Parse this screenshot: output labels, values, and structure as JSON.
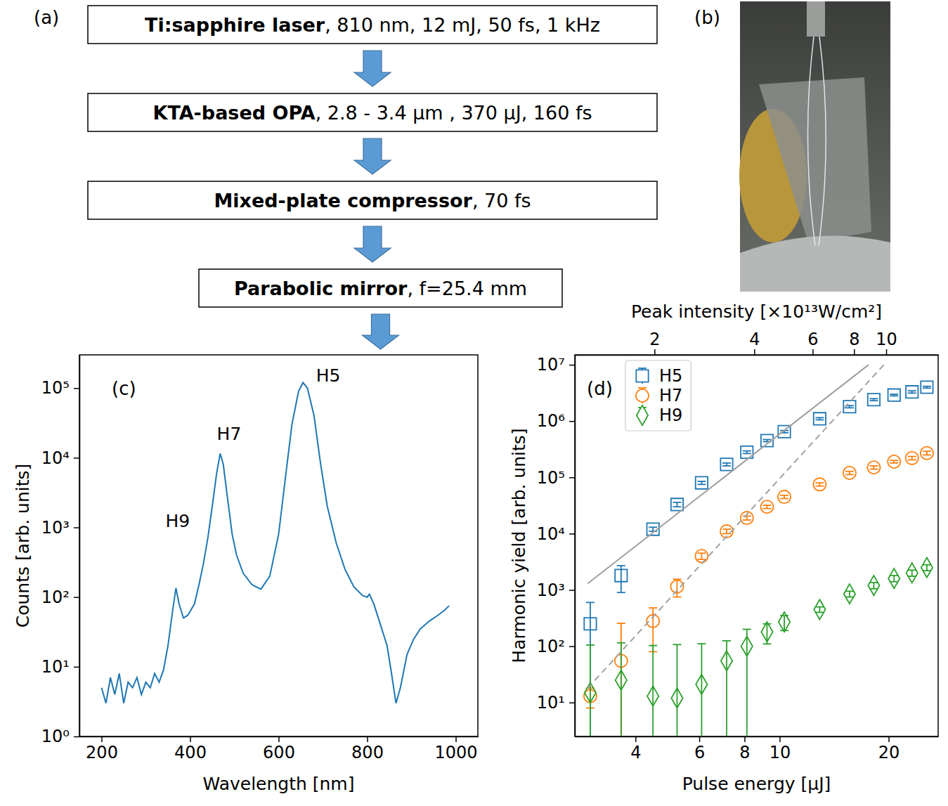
{
  "diagram": {
    "label": "(a)",
    "boxes": [
      {
        "bold": "Ti:sapphire laser",
        "text": ", 810 nm, 12 mJ, 50 fs, 1 kHz"
      },
      {
        "bold": "KTA-based OPA",
        "text": ", 2.8 - 3.4 μm , 370 μJ, 160 fs"
      },
      {
        "bold": "Mixed-plate compressor",
        "text": ", 70 fs"
      },
      {
        "bold": "Parabolic mirror",
        "text": ", f=25.4 mm"
      }
    ]
  },
  "photo": {
    "label": "(b)"
  },
  "chart_data": [
    {
      "type": "line",
      "title": "(c)",
      "x_label": "Wavelength [nm]",
      "y_label": "Counts [arb. units]",
      "log": "y",
      "grid": false,
      "xlim": [
        150,
        1050
      ],
      "xticks": [
        200,
        400,
        600,
        800,
        1000
      ],
      "ylim": [
        1,
        300000
      ],
      "yticks": [
        {
          "value": 1,
          "label": "10⁰"
        },
        {
          "value": 10,
          "label": "10¹"
        },
        {
          "value": 100,
          "label": "10²"
        },
        {
          "value": 1000,
          "label": "10³"
        },
        {
          "value": 10000,
          "label": "10⁴"
        },
        {
          "value": 100000,
          "label": "10⁵"
        }
      ],
      "x": [
        200,
        210,
        220,
        230,
        240,
        250,
        260,
        270,
        280,
        290,
        300,
        310,
        320,
        330,
        340,
        350,
        360,
        368,
        375,
        385,
        395,
        410,
        420,
        430,
        440,
        450,
        460,
        468,
        475,
        485,
        495,
        505,
        520,
        540,
        560,
        580,
        600,
        615,
        630,
        645,
        655,
        665,
        680,
        695,
        710,
        730,
        750,
        770,
        790,
        800,
        805,
        815,
        830,
        845,
        855,
        865,
        875,
        890,
        905,
        920,
        940,
        960,
        975,
        985
      ],
      "series": [
        {
          "color": "#1f77b4",
          "values": [
            5,
            3,
            7,
            4,
            8,
            3,
            6,
            5,
            7,
            4,
            6,
            5,
            8,
            6,
            9,
            20,
            60,
            135,
            80,
            50,
            55,
            80,
            150,
            300,
            700,
            2000,
            6000,
            11500,
            8000,
            2500,
            800,
            400,
            220,
            150,
            130,
            200,
            800,
            5000,
            30000,
            90000,
            120000,
            100000,
            40000,
            8000,
            2000,
            600,
            250,
            140,
            105,
            100,
            110,
            80,
            40,
            20,
            8,
            3,
            5,
            15,
            25,
            35,
            45,
            55,
            65,
            75
          ]
        }
      ],
      "annotations": [
        {
          "text": "H9",
          "x": 372,
          "y": 1230
        },
        {
          "text": "H7",
          "x": 488,
          "y": 22000
        },
        {
          "text": "H5",
          "x": 712,
          "y": 150000
        }
      ]
    },
    {
      "type": "scatter",
      "title": "(d)",
      "x_label": "Pulse energy [μJ]",
      "y_label": "Harmonic yield [arb. units]",
      "x2_label": "Peak intensity [×10¹³W/cm²]",
      "log": true,
      "grid": false,
      "legend": "upper left",
      "xlim": [
        2.72,
        27.4
      ],
      "xticks": [
        4,
        6,
        8,
        10,
        20
      ],
      "x2lim": [
        1.15,
        14.35
      ],
      "x2ticks": [
        2,
        4,
        6,
        8,
        10
      ],
      "ylim": [
        2.5,
        15000000
      ],
      "yticks": [
        {
          "value": 10,
          "label": "10¹"
        },
        {
          "value": 100,
          "label": "10²"
        },
        {
          "value": 1000,
          "label": "10³"
        },
        {
          "value": 10000,
          "label": "10⁴"
        },
        {
          "value": 100000,
          "label": "10⁵"
        },
        {
          "value": 1000000,
          "label": "10⁶"
        },
        {
          "value": 10000000,
          "label": "10⁷"
        }
      ],
      "x": [
        3.0,
        3.65,
        4.47,
        5.21,
        6.09,
        7.14,
        8.12,
        9.23,
        10.3,
        12.9,
        15.6,
        18.2,
        20.7,
        23.2,
        25.5
      ],
      "series": [
        {
          "name": "H5",
          "color": "#1f77b4",
          "marker": "square",
          "values": [
            250,
            1800,
            12000,
            33000,
            80000,
            170000,
            280000,
            450000,
            650000,
            1100000,
            1800000,
            2400000,
            2900000,
            3300000,
            4000000
          ],
          "errors": [
            350,
            900,
            1000,
            3000,
            5000,
            10000,
            15000,
            20000,
            30000,
            50000,
            80000,
            100000,
            100000,
            150000,
            150000
          ]
        },
        {
          "name": "H7",
          "color": "#ff7f0e",
          "marker": "circle",
          "values": [
            13,
            55,
            280,
            1150,
            4000,
            11000,
            19000,
            30000,
            45000,
            75000,
            120000,
            150000,
            190000,
            220000,
            270000
          ],
          "errors": [
            5,
            200,
            200,
            400,
            500,
            1000,
            1500,
            2000,
            3000,
            5000,
            8000,
            10000,
            10000,
            15000,
            20000
          ]
        },
        {
          "name": "H9",
          "color": "#2ca02c",
          "marker": "diamond",
          "values": [
            15,
            25,
            13,
            12,
            21,
            55,
            100,
            180,
            270,
            450,
            850,
            1200,
            1600,
            2000,
            2500
          ],
          "errors": [
            90,
            90,
            90,
            95,
            90,
            70,
            100,
            70,
            80,
            50,
            100,
            150,
            200,
            250,
            300
          ]
        },
        {
          "type": "line",
          "color": "#a0a0a0",
          "line_style": "solid",
          "x": [
            2.95,
            17.6
          ],
          "values": [
            1300,
            10000000
          ]
        },
        {
          "type": "line",
          "color": "#a0a0a0",
          "line_style": "dashed",
          "x": [
            2.95,
            19.4
          ],
          "values": [
            18,
            10000000
          ]
        }
      ]
    }
  ]
}
